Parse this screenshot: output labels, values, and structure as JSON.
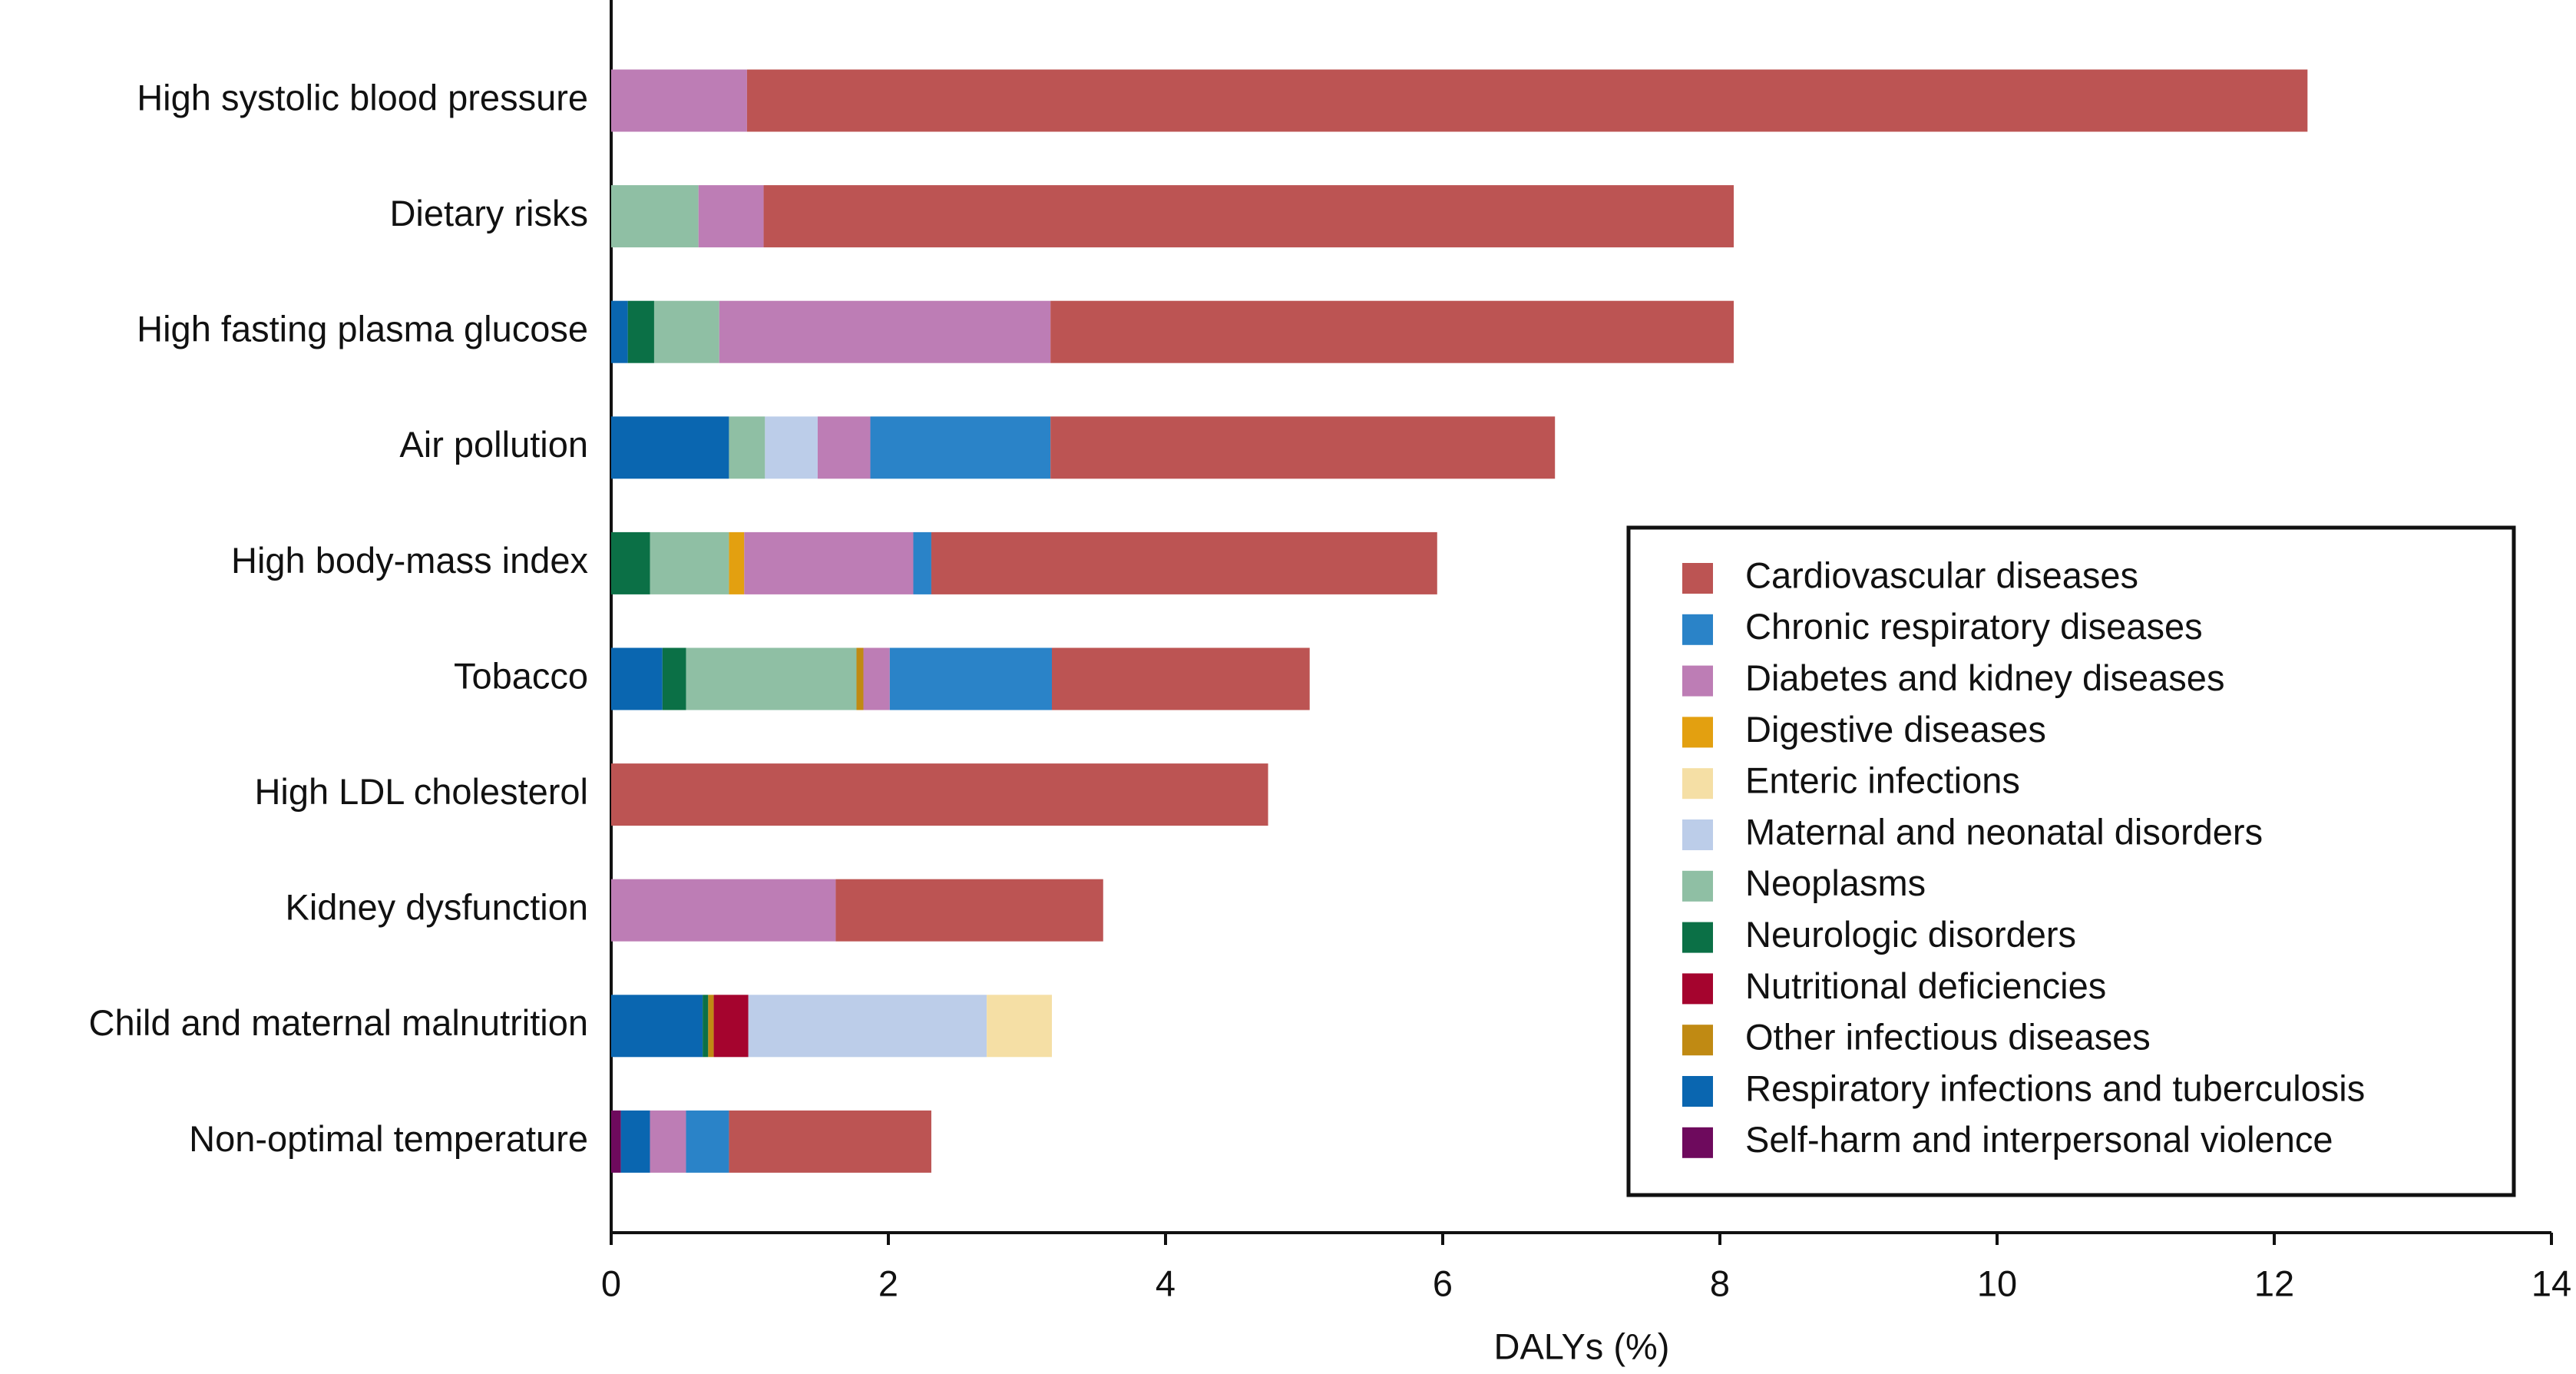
{
  "chart_data": {
    "type": "stacked-barh",
    "x_label": "DALYs (%)",
    "categories": [
      "High systolic blood pressure",
      "Dietary risks",
      "High fasting plasma glucose",
      "Air pollution",
      "High body-mass index",
      "Tobacco",
      "High LDL cholesterol",
      "Kidney dysfunction",
      "Child and maternal malnutrition",
      "Non-optimal temperature"
    ],
    "series": [
      {
        "name": "Cardiovascular diseases",
        "color": "#bc5453",
        "values": [
          11.26,
          7.0,
          4.93,
          3.64,
          3.65,
          1.86,
          4.74,
          1.93,
          null,
          1.46
        ]
      },
      {
        "name": "Chronic respiratory diseases",
        "color": "#2a83c8",
        "values": [
          null,
          null,
          null,
          1.3,
          0.13,
          1.17,
          null,
          null,
          null,
          0.31
        ]
      },
      {
        "name": "Diabetes and kidney diseases",
        "color": "#bd7db5",
        "values": [
          0.98,
          0.47,
          2.39,
          0.38,
          1.22,
          0.19,
          null,
          1.62,
          null,
          0.26
        ]
      },
      {
        "name": "Digestive diseases",
        "color": "#e3a010",
        "values": [
          null,
          null,
          null,
          null,
          0.11,
          null,
          null,
          null,
          null,
          null
        ]
      },
      {
        "name": "Enteric infections",
        "color": "#f5dfa5",
        "values": [
          null,
          null,
          null,
          null,
          null,
          null,
          null,
          null,
          0.47,
          null
        ]
      },
      {
        "name": "Maternal and neonatal disorders",
        "color": "#bccde9",
        "values": [
          null,
          null,
          null,
          0.38,
          null,
          null,
          null,
          null,
          1.72,
          null
        ]
      },
      {
        "name": "Neoplasms",
        "color": "#8fbfa4",
        "values": [
          null,
          0.63,
          0.47,
          0.26,
          0.57,
          1.23,
          null,
          null,
          null,
          null
        ]
      },
      {
        "name": "Neurologic disorders",
        "color": "#0b7046",
        "values": [
          null,
          null,
          0.19,
          null,
          0.28,
          0.17,
          null,
          null,
          0.04,
          null
        ]
      },
      {
        "name": "Nutritional deficiencies",
        "color": "#a5042e",
        "values": [
          null,
          null,
          null,
          null,
          null,
          null,
          null,
          null,
          0.25,
          null
        ]
      },
      {
        "name": "Other infectious diseases",
        "color": "#c08a13",
        "values": [
          null,
          null,
          null,
          null,
          null,
          0.05,
          null,
          null,
          0.04,
          null
        ]
      },
      {
        "name": "Respiratory infections and tuberculosis",
        "color": "#0a66b0",
        "values": [
          null,
          null,
          0.12,
          0.85,
          null,
          0.37,
          null,
          null,
          0.66,
          0.21
        ]
      },
      {
        "name": "Self-harm and interpersonal violence",
        "color": "#6e0a5d",
        "values": [
          null,
          null,
          null,
          null,
          null,
          null,
          null,
          null,
          null,
          0.07
        ]
      }
    ],
    "xlim": [
      0,
      14
    ],
    "xticks": [
      0,
      2,
      4,
      6,
      8,
      10,
      12,
      14
    ],
    "legend": "lower right"
  }
}
